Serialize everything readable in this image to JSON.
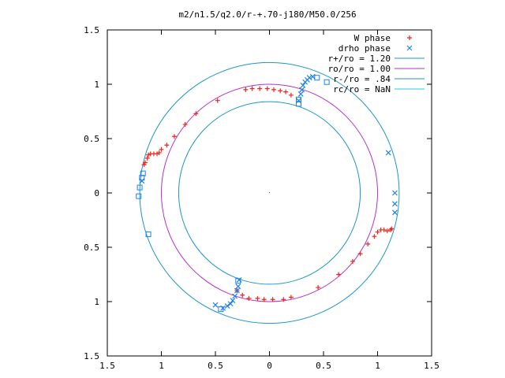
{
  "chart_data": {
    "type": "scatter",
    "title": "m2/n1.5/q2.0/r-+.70-j180/M50.0/256",
    "xlim": [
      -1.5,
      1.5
    ],
    "ylim": [
      -1.5,
      1.5
    ],
    "x_ticks": [
      -1.5,
      -1,
      -0.5,
      0,
      0.5,
      1,
      1.5
    ],
    "x_tick_labels": [
      "1.5",
      "1",
      "0.5",
      "0",
      "0.5",
      "1",
      "1.5"
    ],
    "y_ticks": [
      1.5,
      1,
      0.5,
      0,
      -0.5,
      -1,
      -1.5
    ],
    "y_tick_labels": [
      "1.5",
      "1",
      "0.5",
      "0",
      "0.5",
      "1",
      "1.5"
    ],
    "grid": false,
    "legend_position": "top-right",
    "colors": {
      "w_phase": "#e8271e",
      "drho_phase": "#1a82e8",
      "r_plus": "#1e96c8",
      "r_zero": "#b432c8",
      "r_minus": "#1e96c8",
      "r_c": "#28c8e6"
    },
    "legend": [
      {
        "key": "w_phase",
        "label": "W phase"
      },
      {
        "key": "drho_phase",
        "label": "drho phase"
      },
      {
        "key": "r_plus",
        "label": "r+/ro = 1.20"
      },
      {
        "key": "r_zero",
        "label": "ro/ro = 1.00"
      },
      {
        "key": "r_minus",
        "label": "r-/ro = .84"
      },
      {
        "key": "r_c",
        "label": "rc/ro = NaN"
      }
    ],
    "circles": [
      {
        "key": "r_plus",
        "radius": 1.2
      },
      {
        "key": "r_zero",
        "radius": 1.0
      },
      {
        "key": "r_minus",
        "radius": 0.84
      }
    ],
    "series": [
      {
        "key": "w_phase",
        "marker": "plus",
        "points": [
          [
            -0.22,
            0.95
          ],
          [
            -0.16,
            0.96
          ],
          [
            -0.09,
            0.96
          ],
          [
            -0.02,
            0.96
          ],
          [
            0.04,
            0.95
          ],
          [
            0.1,
            0.94
          ],
          [
            0.15,
            0.93
          ],
          [
            0.2,
            0.9
          ],
          [
            -0.48,
            0.85
          ],
          [
            -0.68,
            0.73
          ],
          [
            -0.78,
            0.63
          ],
          [
            -0.88,
            0.52
          ],
          [
            -0.95,
            0.44
          ],
          [
            -1.0,
            0.4
          ],
          [
            -1.02,
            0.37
          ],
          [
            -1.04,
            0.36
          ],
          [
            -1.07,
            0.36
          ],
          [
            -1.1,
            0.36
          ],
          [
            -1.12,
            0.35
          ],
          [
            -1.13,
            0.32
          ],
          [
            -1.15,
            0.28
          ],
          [
            -1.16,
            0.26
          ],
          [
            -0.3,
            -0.9
          ],
          [
            -0.25,
            -0.94
          ],
          [
            -0.19,
            -0.97
          ],
          [
            -0.11,
            -0.97
          ],
          [
            -0.05,
            -0.98
          ],
          [
            0.03,
            -0.98
          ],
          [
            0.13,
            -0.98
          ],
          [
            0.2,
            -0.96
          ],
          [
            0.45,
            -0.87
          ],
          [
            0.64,
            -0.75
          ],
          [
            0.77,
            -0.63
          ],
          [
            0.84,
            -0.56
          ],
          [
            0.91,
            -0.47
          ],
          [
            0.97,
            -0.4
          ],
          [
            1.0,
            -0.36
          ],
          [
            1.03,
            -0.34
          ],
          [
            1.06,
            -0.34
          ],
          [
            1.09,
            -0.35
          ],
          [
            1.12,
            -0.34
          ],
          [
            1.13,
            -0.33
          ]
        ]
      },
      {
        "key": "drho_phase",
        "marker": "cross",
        "points": [
          [
            0.27,
            0.85
          ],
          [
            0.29,
            0.91
          ],
          [
            0.3,
            0.95
          ],
          [
            0.31,
            0.99
          ],
          [
            0.33,
            1.02
          ],
          [
            0.35,
            1.04
          ],
          [
            0.37,
            1.06
          ],
          [
            0.4,
            1.07
          ],
          [
            1.1,
            0.37
          ],
          [
            1.16,
            0.0
          ],
          [
            1.16,
            -0.1
          ],
          [
            1.16,
            -0.18
          ],
          [
            -0.28,
            -0.8
          ],
          [
            -0.29,
            -0.86
          ],
          [
            -0.3,
            -0.9
          ],
          [
            -0.32,
            -0.95
          ],
          [
            -0.34,
            -0.99
          ],
          [
            -0.36,
            -1.02
          ],
          [
            -0.39,
            -1.04
          ],
          [
            -0.43,
            -1.06
          ],
          [
            -0.5,
            -1.03
          ],
          [
            -1.18,
            0.11
          ]
        ]
      },
      {
        "key": "drho_phase",
        "marker": "square",
        "points": [
          [
            0.27,
            0.82
          ],
          [
            0.27,
            0.86
          ],
          [
            0.44,
            1.06
          ],
          [
            0.53,
            1.02
          ],
          [
            -1.17,
            0.18
          ],
          [
            -1.18,
            0.14
          ],
          [
            -1.2,
            0.05
          ],
          [
            -1.21,
            -0.03
          ],
          [
            -1.12,
            -0.38
          ],
          [
            -0.29,
            -0.81
          ],
          [
            -0.45,
            -1.07
          ]
        ]
      }
    ]
  }
}
